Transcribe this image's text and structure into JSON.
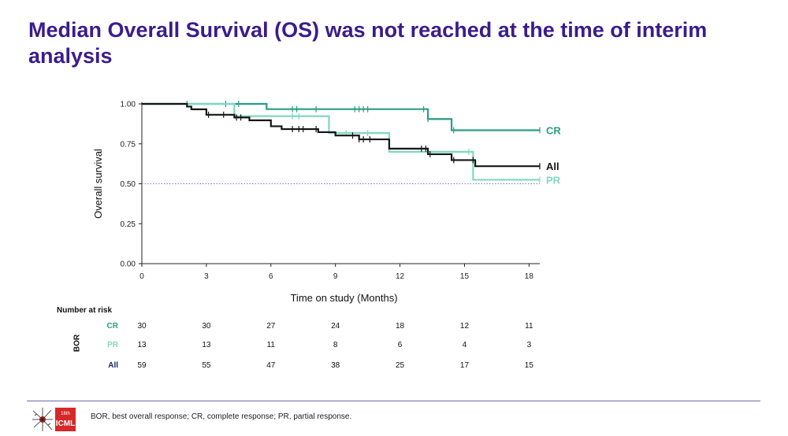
{
  "title": "Median Overall Survival (OS) was not reached at the time of interim analysis",
  "chart_data": {
    "type": "line",
    "subtype": "kaplan-meier step curve",
    "xlabel": "Time on study (Months)",
    "ylabel": "Overall survival",
    "xlim": [
      0,
      18.5
    ],
    "ylim": [
      0,
      1
    ],
    "xticks": [
      0,
      3,
      6,
      9,
      12,
      15,
      18
    ],
    "yticks": [
      "0.00",
      "0.25",
      "0.50",
      "0.75",
      "1.00"
    ],
    "reference_line": {
      "y": 0.5,
      "style": "dotted"
    },
    "series": [
      {
        "name": "CR",
        "color": "#2a9d84",
        "steps": [
          [
            0,
            1.0
          ],
          [
            5.8,
            0.967
          ],
          [
            13.3,
            0.905
          ],
          [
            14.4,
            0.835
          ],
          [
            18.5,
            0.835
          ]
        ],
        "censor_times": [
          2.1,
          3.9,
          4.5,
          7.0,
          7.2,
          8.1,
          9.9,
          10.1,
          10.3,
          10.5,
          13.1,
          13.3,
          14.5,
          18.5
        ]
      },
      {
        "name": "PR",
        "color": "#7fd8c0",
        "steps": [
          [
            0,
            1.0
          ],
          [
            4.3,
            0.923
          ],
          [
            8.7,
            0.817
          ],
          [
            11.5,
            0.7
          ],
          [
            15.4,
            0.525
          ],
          [
            18.5,
            0.525
          ]
        ],
        "censor_times": [
          7.0,
          7.3,
          9.5,
          10.5,
          15.2,
          18.5
        ]
      },
      {
        "name": "All",
        "color": "#151515",
        "steps": [
          [
            0,
            1.0
          ],
          [
            2.1,
            0.983
          ],
          [
            2.3,
            0.966
          ],
          [
            3.0,
            0.932
          ],
          [
            4.3,
            0.915
          ],
          [
            5.0,
            0.897
          ],
          [
            6.0,
            0.86
          ],
          [
            6.5,
            0.842
          ],
          [
            8.2,
            0.823
          ],
          [
            9.0,
            0.802
          ],
          [
            10.1,
            0.778
          ],
          [
            11.5,
            0.72
          ],
          [
            13.3,
            0.685
          ],
          [
            14.4,
            0.648
          ],
          [
            15.5,
            0.61
          ],
          [
            18.5,
            0.61
          ]
        ],
        "censor_times": [
          3.1,
          3.8,
          4.4,
          4.6,
          7.0,
          7.3,
          7.5,
          8.1,
          9.8,
          10.1,
          10.3,
          10.6,
          13.0,
          13.2,
          13.4,
          14.5,
          15.4,
          18.5
        ]
      }
    ]
  },
  "risk_table": {
    "heading": "Number at risk",
    "group_label": "BOR",
    "times": [
      0,
      3,
      6,
      9,
      12,
      15,
      18
    ],
    "rows": [
      {
        "label": "CR",
        "color": "#2a9d84",
        "values": [
          "30",
          "30",
          "27",
          "24",
          "18",
          "12",
          "11"
        ]
      },
      {
        "label": "PR",
        "color": "#7fd8c0",
        "values": [
          "13",
          "13",
          "11",
          "8",
          "6",
          "4",
          "3"
        ]
      },
      {
        "label": "All",
        "color": "#1b1f6e",
        "values": [
          "59",
          "55",
          "47",
          "38",
          "25",
          "17",
          "15"
        ]
      }
    ]
  },
  "footer": {
    "logo_top": "18th",
    "logo_main": "ICML",
    "footnote": "BOR, best overall response; CR, complete response; PR, partial response."
  }
}
